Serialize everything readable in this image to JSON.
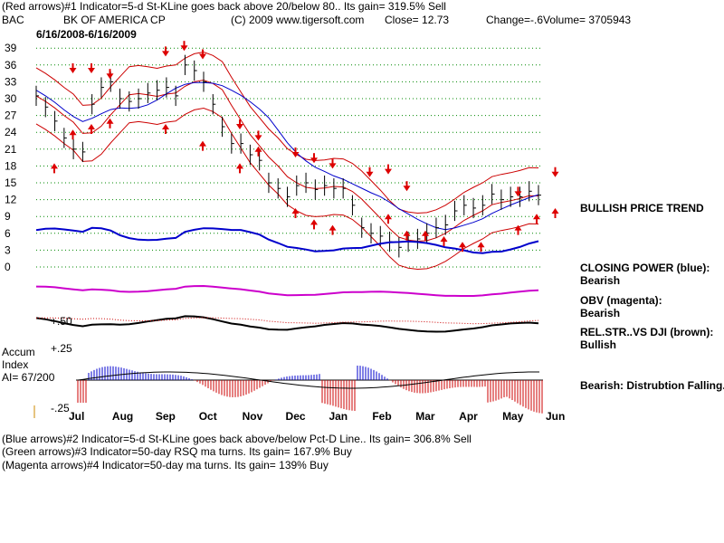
{
  "header": {
    "line1": "(Red arrows)#1 Indicator=5-d St-KLine goes back above 20/below 80.. Its gain= 319.5% Sell",
    "ticker": "BAC",
    "company": "BK OF AMERICA CP",
    "copyright": "(C) 2009 www.tigersoft.com",
    "close": "Close= 12.73",
    "change": "Change=-.6",
    "volume": "Volume= 3705943",
    "daterange": "6/16/2008-6/16/2009"
  },
  "right_panel": {
    "trend": "BULLISH PRICE TREND",
    "cp_label": "CLOSING POWER (blue):",
    "cp_value": "Bearish",
    "obv_label": "OBV (magenta):",
    "obv_value": "Bearish",
    "rs_label": "REL.STR..VS DJI (brown):",
    "rs_value": "Bullish",
    "accum_note": "Bearish: Distrubtion Falling."
  },
  "accum": {
    "label1": "Accum",
    "label2": "Index",
    "ai": "AI= 67/200",
    "tick_top": "+.25",
    "tick_mid": "+.50",
    "tick_bottom": "-.25"
  },
  "footer": {
    "line2": "(Blue arrows)#2 Indicator=5-d St-KLine goes back above/below Pct-D Line.. Its gain= 306.8% Sell",
    "line3": "(Green arrows)#3 Indicator=50-day RSQ ma turns. Its gain= 167.9% Buy",
    "line4": "(Magenta arrows)#4 Indicator=50-day ma turns. Its gain= 139% Buy"
  },
  "colors": {
    "price_bars": "#000000",
    "bollinger": "#cc0000",
    "ma": "#0000cc",
    "ma_dotted": "#cc0000",
    "closing_power": "#0000cc",
    "obv": "#cc00cc",
    "relstr": "#000000",
    "relstr_ma": "#cc0000",
    "arrow_red": "#dd0000",
    "accum_pos": "#0000cc",
    "accum_neg": "#cc0000",
    "grid": "#008800"
  },
  "chart_data": {
    "type": "line",
    "y_ticks": [
      39,
      36,
      33,
      30,
      27,
      24,
      21,
      18,
      15,
      12,
      9,
      6,
      3,
      0
    ],
    "ylim": [
      0,
      40
    ],
    "months": [
      "Jul",
      "Aug",
      "Sep",
      "Oct",
      "Nov",
      "Dec",
      "Jan",
      "Feb",
      "Mar",
      "Apr",
      "May",
      "Jun"
    ],
    "close_price_approx": [
      30.5,
      28.5,
      26,
      23,
      21,
      20.5,
      29,
      32,
      33,
      30,
      29.5,
      30,
      31,
      31.5,
      32,
      30.5,
      36,
      35,
      33,
      29,
      25,
      22,
      22,
      20,
      19,
      15,
      14,
      12.5,
      14.5,
      15,
      13.8,
      14.5,
      14,
      14,
      11,
      7,
      6,
      5.5,
      4.5,
      3.5,
      4.5,
      5,
      6,
      7,
      7.5,
      10,
      11,
      10.5,
      11,
      13,
      12,
      12.5,
      12.5,
      13.5,
      12.8
    ],
    "sell_arrows_red": [
      [
        31,
        35
      ],
      [
        32,
        35
      ],
      [
        33,
        34
      ],
      [
        36,
        38
      ],
      [
        37,
        39
      ],
      [
        38,
        37.5
      ],
      [
        40,
        25
      ],
      [
        41,
        23
      ],
      [
        43,
        20
      ],
      [
        44,
        19
      ],
      [
        45,
        18
      ],
      [
        47,
        16.5
      ],
      [
        48,
        17
      ],
      [
        49,
        14
      ],
      [
        55,
        13
      ],
      [
        57,
        16.5
      ]
    ],
    "buy_arrows_red": [
      [
        30,
        18
      ],
      [
        31,
        24
      ],
      [
        32,
        25
      ],
      [
        33,
        26
      ],
      [
        36,
        25
      ],
      [
        38,
        22
      ],
      [
        40,
        18
      ],
      [
        41,
        21
      ],
      [
        43,
        10
      ],
      [
        44,
        8
      ],
      [
        45,
        7
      ],
      [
        48,
        9
      ],
      [
        49,
        6
      ],
      [
        50,
        6
      ],
      [
        51,
        5
      ],
      [
        52,
        4
      ],
      [
        53,
        4
      ],
      [
        55,
        7
      ],
      [
        56,
        9
      ],
      [
        57,
        10
      ]
    ]
  }
}
